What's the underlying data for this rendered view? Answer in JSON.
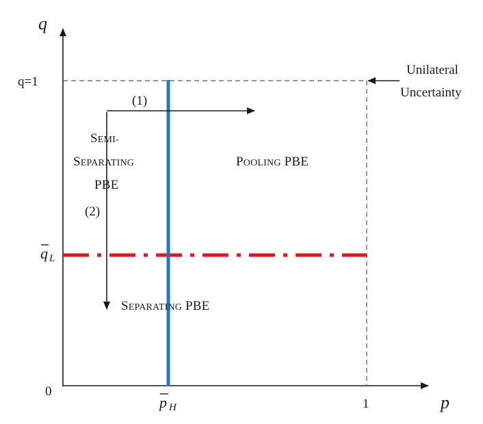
{
  "axes": {
    "x_label": "p",
    "y_label": "q",
    "origin_label": "0",
    "x_tick_one": "1",
    "x_tick_ph_base": "p",
    "x_tick_ph_sub": "H",
    "y_tick_q1": "q=1",
    "y_tick_ql_base": "q",
    "y_tick_ql_sub": "L"
  },
  "annotations": {
    "unilateral_line1": "Unilateral",
    "unilateral_line2": "Uncertainty",
    "arrow1_label": "(1)",
    "arrow2_label": "(2)"
  },
  "regions": {
    "semi_line1_cap": "S",
    "semi_line1_rest": "EMI-",
    "semi_line2_cap": "S",
    "semi_line2_rest": "EPARATING",
    "semi_line3": "PBE",
    "pooling_cap": "P",
    "pooling_rest": "OOLING",
    "pooling_suffix": " PBE",
    "separating_cap": "S",
    "separating_rest": "EPARATING",
    "separating_suffix": " PBE"
  },
  "colors": {
    "threshold_ph_line": "#1f78c8",
    "threshold_ql_line": "#e8141b",
    "axis": "#1a1a1a",
    "dashed": "#555555"
  }
}
